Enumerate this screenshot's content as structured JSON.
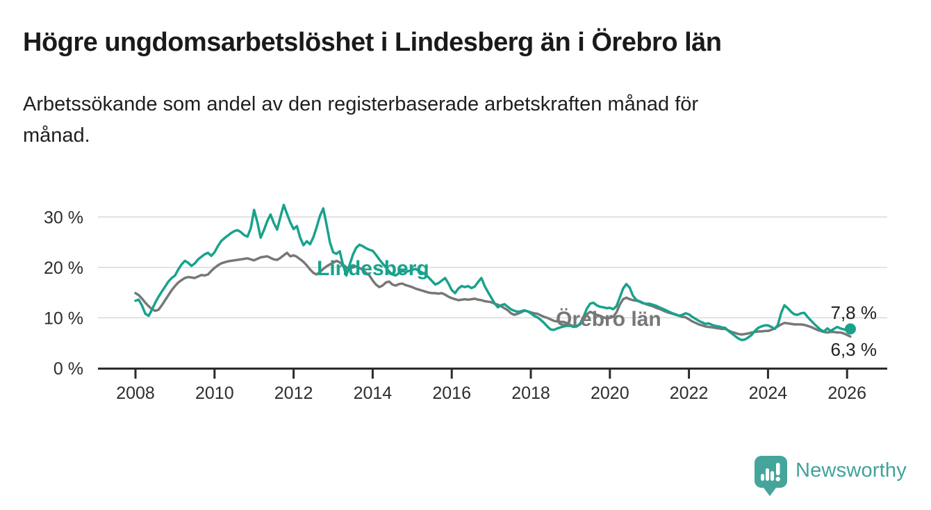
{
  "header": {
    "title": "Högre ungdomsarbetslöshet i Lindesberg än i Örebro län",
    "subtitle_line1": "Arbetssökande som andel av den registerbaserade arbetskraften månad för",
    "subtitle_line2": "månad."
  },
  "branding": {
    "logo_text": "Newsworthy",
    "logo_icon": "newsworthy-bar-chart-bubble-icon",
    "logo_color": "#45A59B"
  },
  "chart_data": {
    "type": "line",
    "title": "Högre ungdomsarbetslöshet i Lindesberg än i Örebro län",
    "xlabel": "",
    "ylabel": "",
    "unit": "%",
    "x_unit": "month",
    "x_start": "2008-01",
    "x_end": "2026-02",
    "x_ticks": [
      2008,
      2010,
      2012,
      2014,
      2016,
      2018,
      2020,
      2022,
      2024,
      2026
    ],
    "y_ticks": [
      0,
      10,
      20,
      30
    ],
    "y_tick_labels": [
      "0 %",
      "10 %",
      "20 %",
      "30 %"
    ],
    "ylim": [
      0,
      34.5
    ],
    "xlim_years": [
      2007.05,
      2027.0
    ],
    "grid": "horizontal",
    "legend": "inline-labels",
    "series": [
      {
        "name": "Örebro län",
        "color": "#777777",
        "end_label": "6,3 %",
        "end_dot": false,
        "values": [
          14.9,
          14.5,
          13.8,
          13.0,
          12.3,
          11.7,
          11.4,
          11.6,
          12.5,
          13.5,
          14.5,
          15.5,
          16.3,
          17.0,
          17.5,
          17.9,
          18.1,
          18.0,
          17.9,
          18.2,
          18.5,
          18.4,
          18.6,
          19.3,
          19.9,
          20.4,
          20.8,
          21.0,
          21.2,
          21.3,
          21.4,
          21.5,
          21.6,
          21.7,
          21.8,
          21.6,
          21.4,
          21.7,
          22.0,
          22.1,
          22.2,
          21.9,
          21.6,
          21.5,
          21.9,
          22.4,
          22.9,
          22.2,
          22.4,
          22.1,
          21.6,
          21.1,
          20.4,
          19.6,
          18.9,
          18.6,
          19.1,
          19.7,
          20.2,
          20.6,
          20.9,
          21.3,
          21.0,
          20.5,
          20.0,
          19.8,
          20.0,
          20.2,
          19.9,
          19.5,
          18.9,
          18.4,
          17.4,
          16.6,
          16.1,
          16.4,
          17.0,
          17.2,
          16.6,
          16.4,
          16.7,
          16.8,
          16.5,
          16.3,
          16.1,
          15.8,
          15.6,
          15.4,
          15.2,
          15.0,
          14.9,
          14.9,
          14.8,
          14.9,
          14.6,
          14.2,
          13.9,
          13.7,
          13.5,
          13.6,
          13.7,
          13.6,
          13.7,
          13.8,
          13.6,
          13.5,
          13.3,
          13.2,
          13.1,
          12.8,
          12.6,
          12.3,
          11.9,
          11.5,
          10.9,
          10.6,
          10.8,
          11.1,
          11.4,
          11.3,
          11.1,
          10.9,
          10.8,
          10.5,
          10.2,
          10.0,
          9.7,
          9.4,
          9.3,
          9.2,
          9.2,
          8.9,
          8.6,
          8.3,
          8.4,
          8.7,
          9.6,
          10.7,
          11.2,
          10.9,
          10.6,
          10.4,
          10.1,
          9.9,
          10.0,
          10.2,
          11.1,
          12.6,
          13.7,
          14.0,
          13.7,
          13.5,
          13.4,
          13.3,
          13.0,
          12.7,
          12.5,
          12.3,
          12.0,
          11.8,
          11.5,
          11.2,
          11.0,
          10.8,
          10.6,
          10.4,
          10.2,
          10.1,
          9.7,
          9.3,
          9.0,
          8.7,
          8.5,
          8.3,
          8.2,
          8.1,
          8.0,
          7.9,
          7.8,
          7.8,
          7.5,
          7.2,
          7.0,
          6.8,
          6.7,
          6.8,
          6.9,
          7.1,
          7.2,
          7.3,
          7.3,
          7.4,
          7.4,
          7.6,
          7.9,
          8.3,
          8.7,
          9.0,
          8.9,
          8.8,
          8.7,
          8.7,
          8.7,
          8.6,
          8.4,
          8.2,
          7.9,
          7.6,
          7.4,
          7.2,
          7.1,
          7.2,
          7.2,
          7.1,
          7.1,
          6.9,
          6.6,
          6.3
        ]
      },
      {
        "name": "Lindesberg",
        "color": "#18A28C",
        "end_label": "7,8 %",
        "end_dot": true,
        "values": [
          13.4,
          13.6,
          12.4,
          10.8,
          10.4,
          11.6,
          13.0,
          14.2,
          15.2,
          16.2,
          17.2,
          17.9,
          18.4,
          19.6,
          20.6,
          21.3,
          20.9,
          20.3,
          20.8,
          21.6,
          22.1,
          22.6,
          22.9,
          22.3,
          23.0,
          24.2,
          25.2,
          25.8,
          26.3,
          26.8,
          27.2,
          27.4,
          27.0,
          26.4,
          26.1,
          27.8,
          31.4,
          29.0,
          25.9,
          27.4,
          29.2,
          30.5,
          28.8,
          27.5,
          30.0,
          32.4,
          30.6,
          28.9,
          27.6,
          28.2,
          25.9,
          24.4,
          25.2,
          24.6,
          26.0,
          28.0,
          30.2,
          31.7,
          28.5,
          25.0,
          23.0,
          22.7,
          23.2,
          20.5,
          18.4,
          20.5,
          22.5,
          23.9,
          24.5,
          24.2,
          23.8,
          23.5,
          23.3,
          22.5,
          21.6,
          20.8,
          20.0,
          19.2,
          18.6,
          18.4,
          18.9,
          19.3,
          19.1,
          19.3,
          19.5,
          19.7,
          19.3,
          19.0,
          18.6,
          18.0,
          17.3,
          16.6,
          16.9,
          17.4,
          17.9,
          16.8,
          15.5,
          14.9,
          15.8,
          16.3,
          16.1,
          16.3,
          15.9,
          16.2,
          17.1,
          17.9,
          16.3,
          15.1,
          14.0,
          12.9,
          12.1,
          12.5,
          12.7,
          12.2,
          11.7,
          11.4,
          11.2,
          11.3,
          11.5,
          11.3,
          10.9,
          10.4,
          10.1,
          9.6,
          9.0,
          8.3,
          7.7,
          7.6,
          7.9,
          8.1,
          8.3,
          8.4,
          8.4,
          8.2,
          8.3,
          8.9,
          10.2,
          11.8,
          12.8,
          13.0,
          12.5,
          12.2,
          12.1,
          11.9,
          12.0,
          11.7,
          12.3,
          14.0,
          15.8,
          16.7,
          16.0,
          14.4,
          13.6,
          13.2,
          12.9,
          12.8,
          12.8,
          12.6,
          12.4,
          12.1,
          11.8,
          11.5,
          11.2,
          10.9,
          10.7,
          10.4,
          10.6,
          10.9,
          10.7,
          10.2,
          9.8,
          9.4,
          9.1,
          8.8,
          8.9,
          8.6,
          8.4,
          8.3,
          8.1,
          8.0,
          7.4,
          6.9,
          6.4,
          5.9,
          5.6,
          5.7,
          6.1,
          6.6,
          7.4,
          8.0,
          8.3,
          8.5,
          8.5,
          8.2,
          7.8,
          8.6,
          11.0,
          12.5,
          11.9,
          11.2,
          10.7,
          10.6,
          10.9,
          11.0,
          10.2,
          9.5,
          8.8,
          8.2,
          7.6,
          7.3,
          7.9,
          7.4,
          7.8,
          8.2,
          7.9,
          7.7,
          7.6,
          7.8
        ]
      }
    ]
  }
}
